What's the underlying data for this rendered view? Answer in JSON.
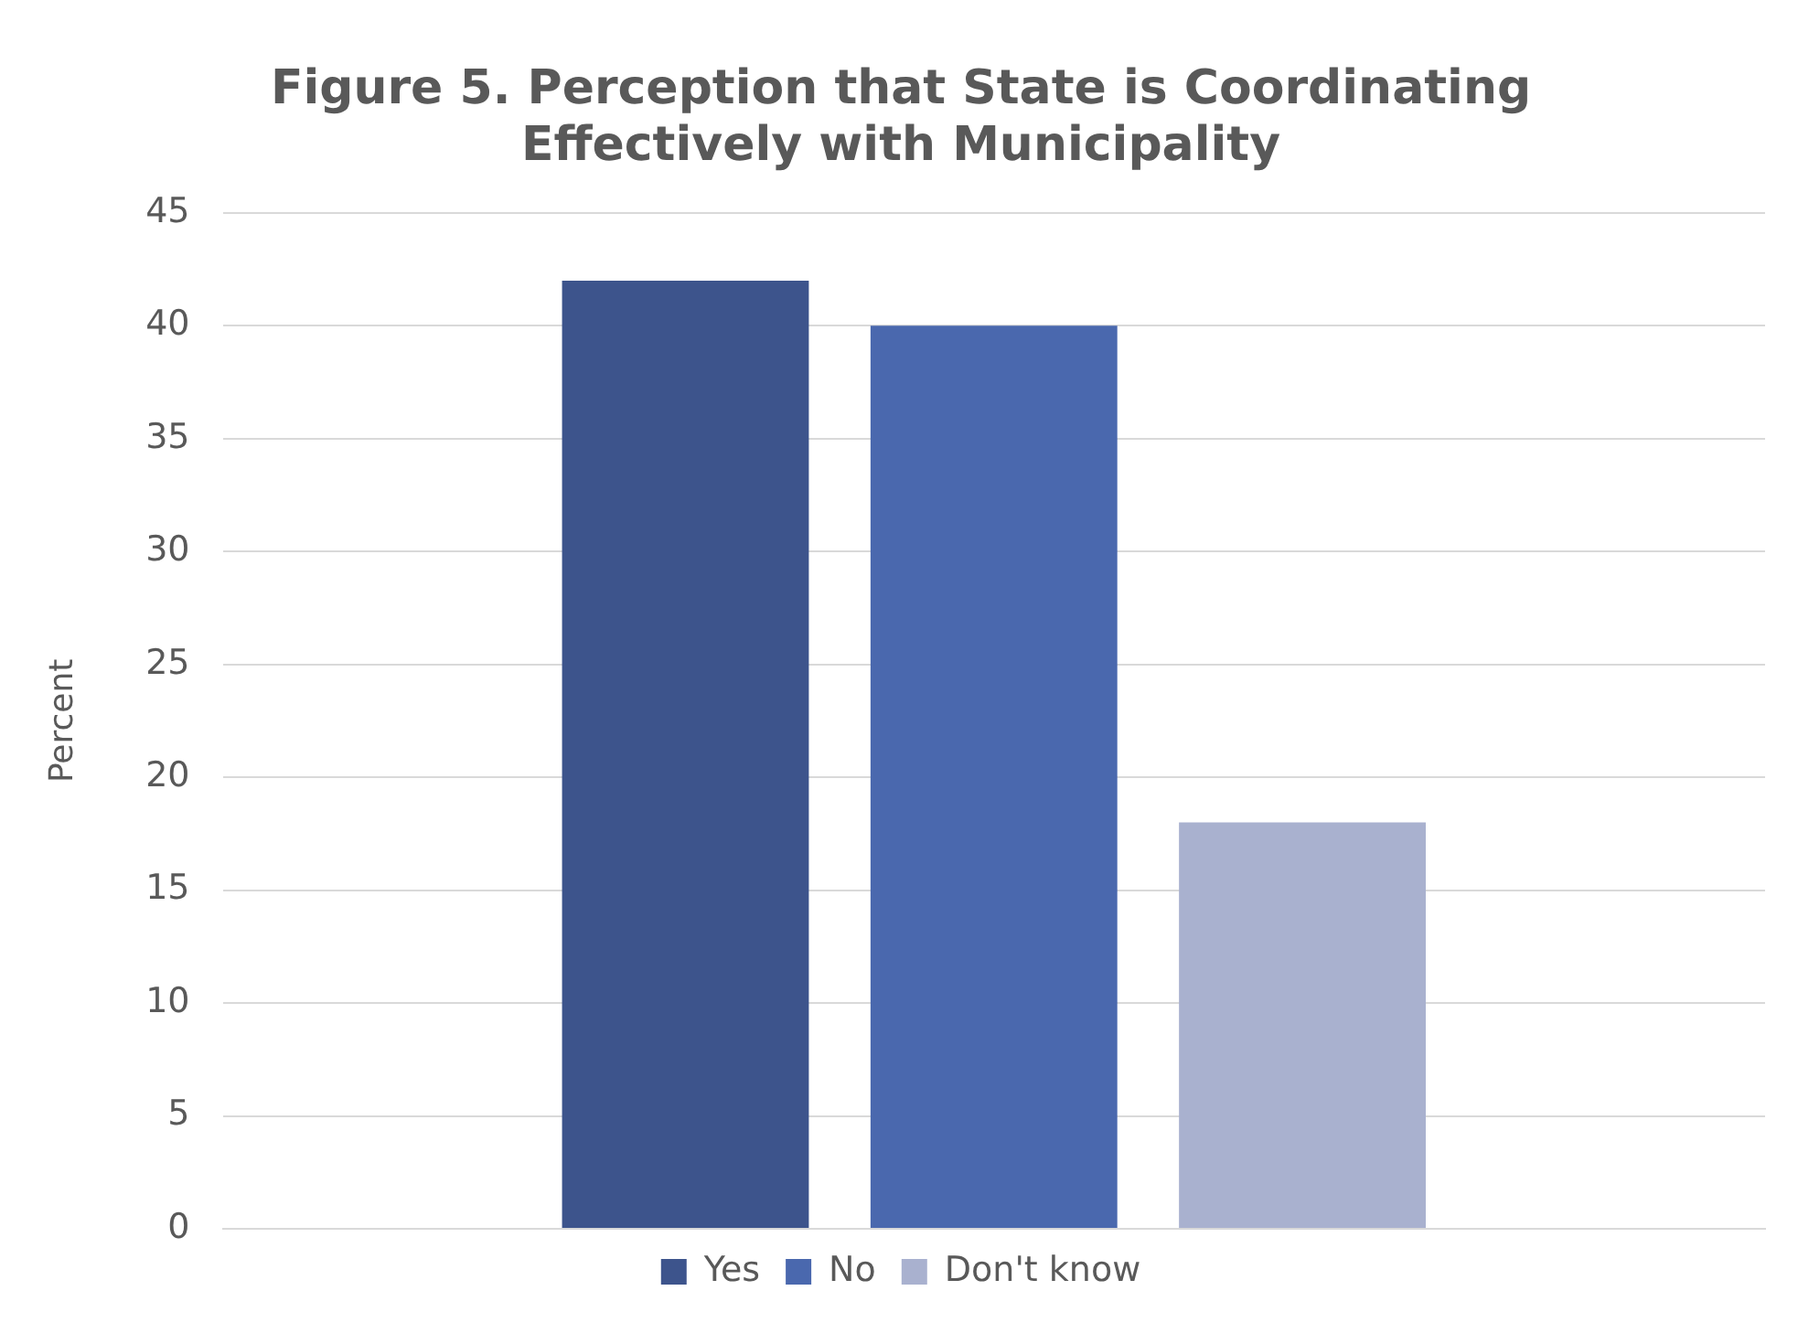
{
  "chart_data": {
    "type": "bar",
    "title": "Figure 5. Perception that State is Coordinating Effectively with Municipality",
    "ylabel": "Percent",
    "categories": [
      null
    ],
    "series": [
      {
        "name": "Yes",
        "color": "#3d548c",
        "values": [
          42
        ]
      },
      {
        "name": "No",
        "color": "#4a68ae",
        "values": [
          40
        ]
      },
      {
        "name": "Don't know",
        "color": "#a9b1cf",
        "values": [
          18
        ]
      }
    ],
    "ylim": [
      0,
      45
    ],
    "yticks": [
      0,
      5,
      10,
      15,
      20,
      25,
      30,
      35,
      40,
      45
    ],
    "grid": "y",
    "legend": "bottom"
  }
}
